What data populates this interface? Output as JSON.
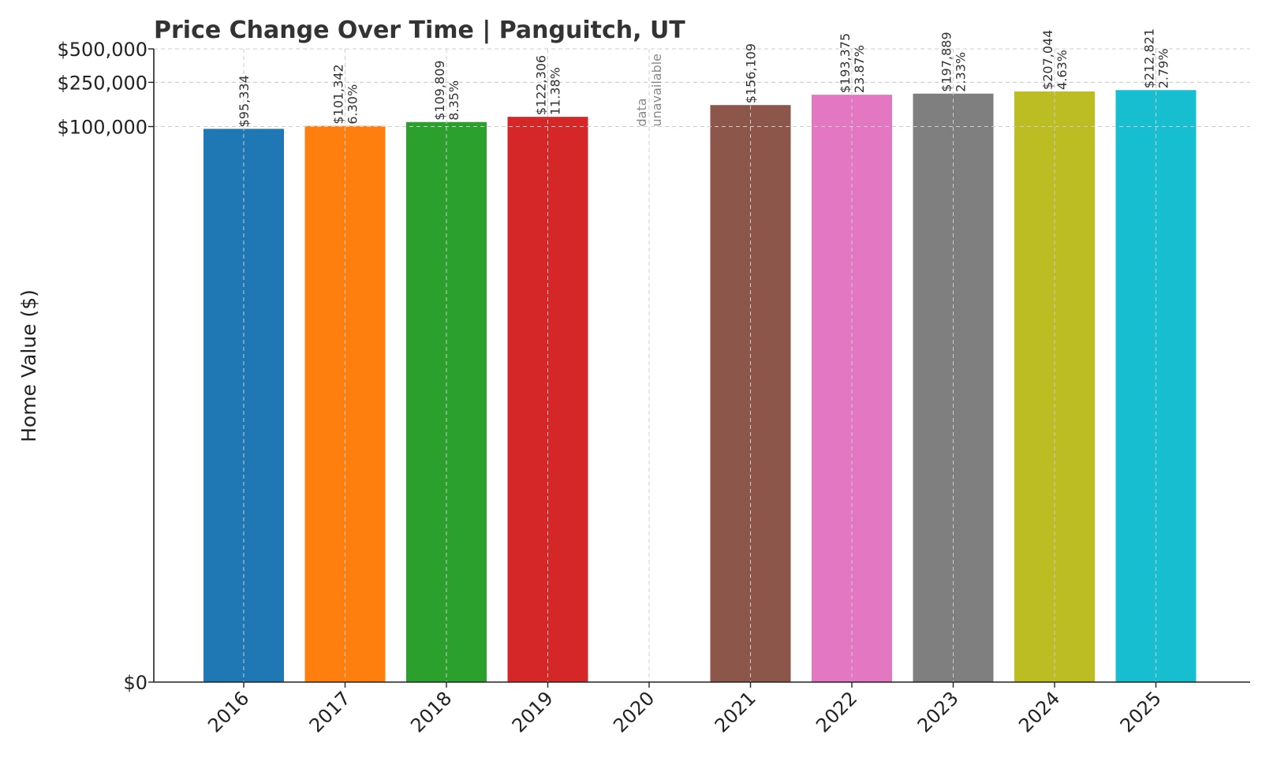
{
  "chart_data": {
    "type": "bar",
    "title": "Price Change Over Time | Panguitch, UT",
    "ylabel": "Home Value ($)",
    "xlabel": "",
    "categories": [
      "2016",
      "2017",
      "2018",
      "2019",
      "2020",
      "2021",
      "2022",
      "2023",
      "2024",
      "2025"
    ],
    "values": [
      95334,
      101342,
      109809,
      122306,
      null,
      156109,
      193375,
      197889,
      207044,
      212821
    ],
    "value_labels": [
      "$95,334",
      "$101,342",
      "$109,809",
      "$122,306",
      "",
      "$156,109",
      "$193,375",
      "$197,889",
      "$207,044",
      "$212,821"
    ],
    "pct_labels": [
      "",
      "6.30%",
      "8.35%",
      "11.38%",
      "",
      "",
      "23.87%",
      "2.33%",
      "4.63%",
      "2.79%"
    ],
    "missing_label": [
      "data",
      "unavailable"
    ],
    "colors": [
      "#1f77b4",
      "#ff7f0e",
      "#2ca02c",
      "#d62728",
      "#9467bd",
      "#8c564b",
      "#e377c2",
      "#7f7f7f",
      "#bcbd22",
      "#17becf"
    ],
    "yticks": [
      0,
      100000,
      250000,
      500000
    ],
    "ytick_labels": [
      "$0",
      "$100,000",
      "$250,000",
      "$500,000"
    ],
    "y_scale": "log1p",
    "ylim": [
      0,
      500000
    ],
    "grid": true
  }
}
